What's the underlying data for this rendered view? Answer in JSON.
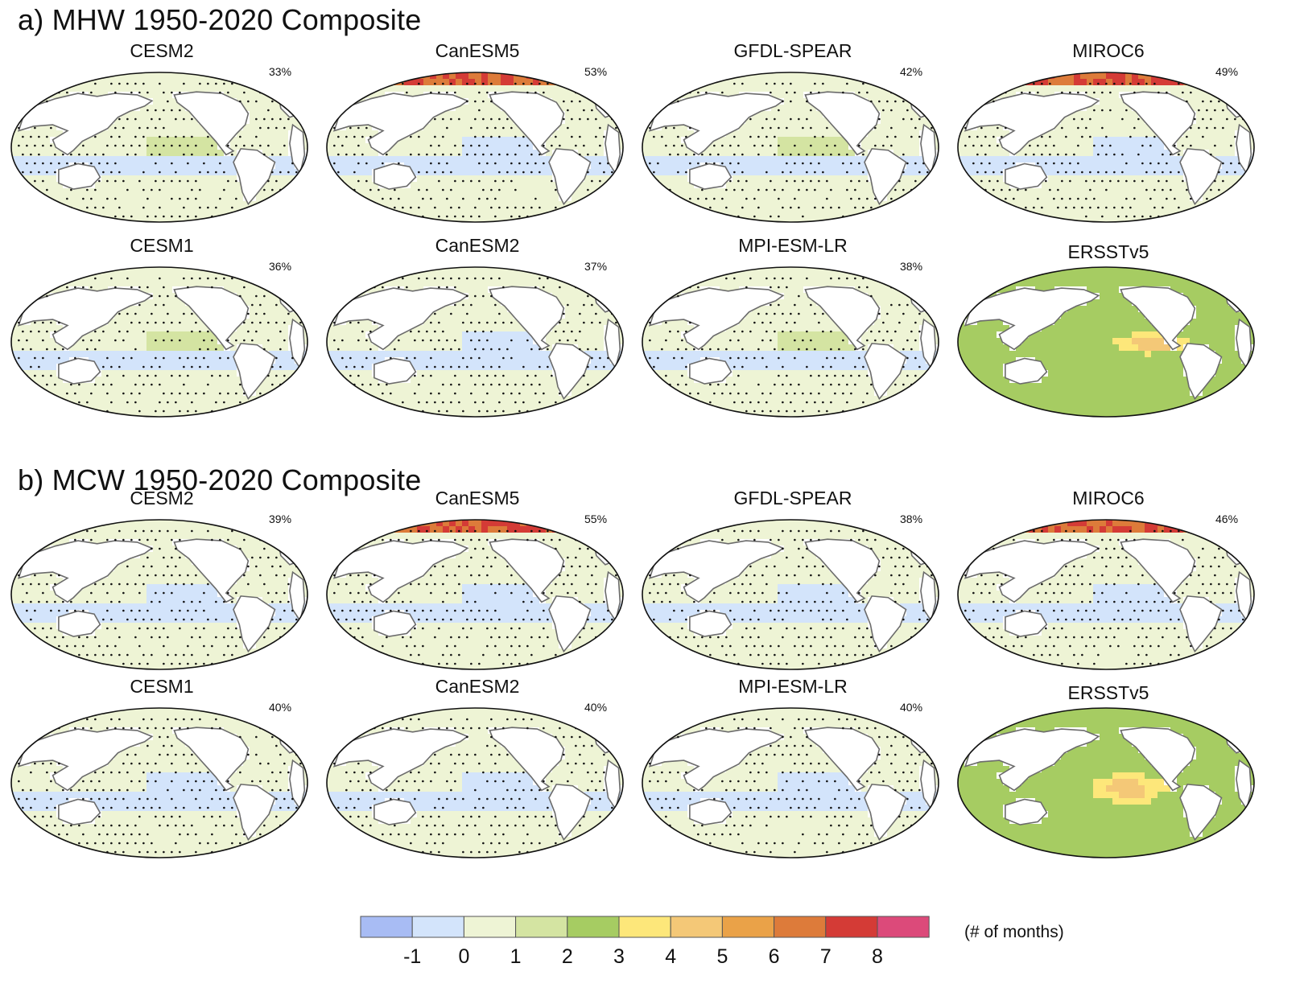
{
  "chart_data": {
    "type": "heatmap",
    "projection": "Robinson (Pacific-centered global map)",
    "units_label": "(# of months)",
    "colorbar": {
      "ticks": [
        "-1",
        "0",
        "1",
        "2",
        "3",
        "4",
        "5",
        "6",
        "7",
        "8"
      ],
      "bins": [
        {
          "range": [
            -2,
            -1
          ],
          "color": "#a8bcf4"
        },
        {
          "range": [
            -1,
            0
          ],
          "color": "#d3e4fb"
        },
        {
          "range": [
            0,
            1
          ],
          "color": "#eef4d5"
        },
        {
          "range": [
            1,
            2
          ],
          "color": "#d4e4a2"
        },
        {
          "range": [
            2,
            3
          ],
          "color": "#a6cc62"
        },
        {
          "range": [
            3,
            4
          ],
          "color": "#fde77a"
        },
        {
          "range": [
            4,
            5
          ],
          "color": "#f4c877"
        },
        {
          "range": [
            5,
            6
          ],
          "color": "#eaa248"
        },
        {
          "range": [
            6,
            7
          ],
          "color": "#dd7b3a"
        },
        {
          "range": [
            7,
            8
          ],
          "color": "#d43b36"
        },
        {
          "range": [
            8,
            9
          ],
          "color": "#dc4a7a"
        }
      ]
    },
    "sections": [
      {
        "id": "a",
        "title": "a) MHW 1950-2020 Composite",
        "panels": [
          {
            "model": "CESM2",
            "percent": "33%"
          },
          {
            "model": "CanESM5",
            "percent": "53%"
          },
          {
            "model": "GFDL-SPEAR",
            "percent": "42%"
          },
          {
            "model": "MIROC6",
            "percent": "49%"
          },
          {
            "model": "CESM1",
            "percent": "36%"
          },
          {
            "model": "CanESM2",
            "percent": "37%"
          },
          {
            "model": "MPI-ESM-LR",
            "percent": "38%"
          },
          {
            "model": "ERSSTv5",
            "percent": null
          }
        ]
      },
      {
        "id": "b",
        "title": "b) MCW 1950-2020 Composite",
        "panels": [
          {
            "model": "CESM2",
            "percent": "39%"
          },
          {
            "model": "CanESM5",
            "percent": "55%"
          },
          {
            "model": "GFDL-SPEAR",
            "percent": "38%"
          },
          {
            "model": "MIROC6",
            "percent": "46%"
          },
          {
            "model": "CESM1",
            "percent": "40%"
          },
          {
            "model": "CanESM2",
            "percent": "40%"
          },
          {
            "model": "MPI-ESM-LR",
            "percent": "40%"
          },
          {
            "model": "ERSSTv5",
            "percent": null
          }
        ]
      }
    ]
  }
}
